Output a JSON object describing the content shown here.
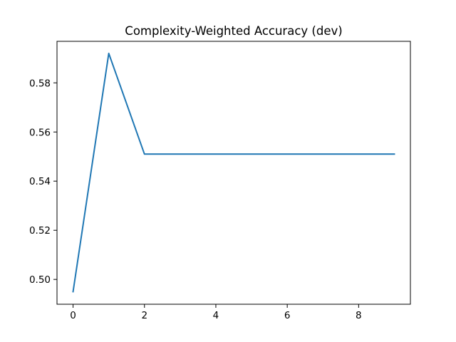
{
  "chart_data": {
    "type": "line",
    "title": "Complexity-Weighted Accuracy (dev)",
    "xlabel": "",
    "ylabel": "",
    "x": [
      0,
      1,
      2,
      3,
      4,
      5,
      6,
      7,
      8,
      9
    ],
    "series": [
      {
        "values": [
          0.495,
          0.592,
          0.551,
          0.551,
          0.551,
          0.551,
          0.551,
          0.551,
          0.551,
          0.551
        ]
      }
    ],
    "xlim": [
      -0.45,
      9.45
    ],
    "ylim": [
      0.4899,
      0.5969
    ],
    "xticks": [
      0,
      2,
      4,
      6,
      8
    ],
    "xtick_labels": [
      "0",
      "2",
      "4",
      "6",
      "8"
    ],
    "yticks": [
      0.5,
      0.52,
      0.54,
      0.56,
      0.58
    ],
    "ytick_labels": [
      "0.50",
      "0.52",
      "0.54",
      "0.56",
      "0.58"
    ],
    "grid": false,
    "legend": "none",
    "line_color": "#1f77b4"
  }
}
